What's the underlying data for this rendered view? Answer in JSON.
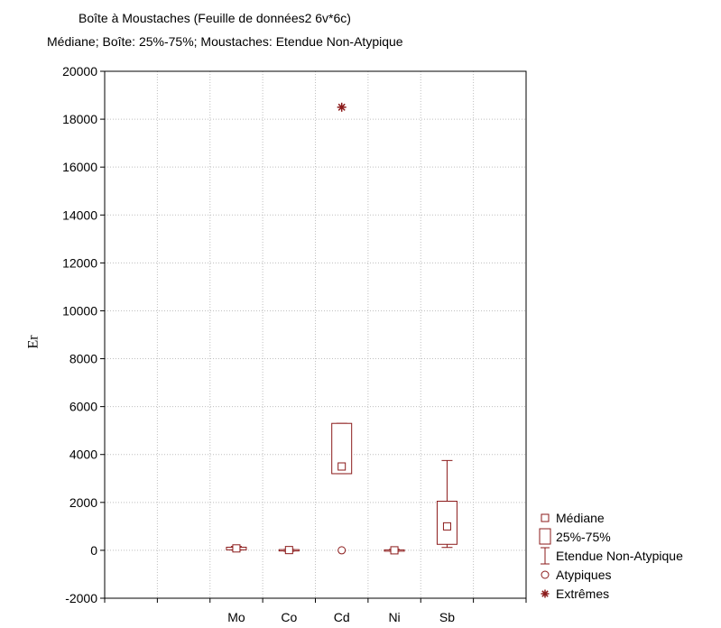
{
  "chart_data": {
    "type": "box",
    "title": "Boîte à Moustaches (Feuille de données2 6v*6c)",
    "subtitle": "Médiane; Boîte: 25%-75%; Moustaches: Etendue Non-Atypique",
    "xlabel": "",
    "ylabel": "Er",
    "ylim": [
      -2000,
      20000
    ],
    "yticks": [
      -2000,
      0,
      2000,
      4000,
      6000,
      8000,
      10000,
      12000,
      14000,
      16000,
      18000,
      20000
    ],
    "categories": [
      "Mo",
      "Co",
      "Cd",
      "Ni",
      "Sb"
    ],
    "grid": true,
    "color": "#8b1a1a",
    "series": [
      {
        "category": "Mo",
        "median": 80,
        "q1": 20,
        "q3": 130,
        "whisker_low": 10,
        "whisker_high": 160,
        "outliers": [],
        "extremes": []
      },
      {
        "category": "Co",
        "median": 10,
        "q1": -20,
        "q3": 30,
        "whisker_low": -40,
        "whisker_high": 40,
        "outliers": [],
        "extremes": []
      },
      {
        "category": "Cd",
        "median": 3500,
        "q1": 3200,
        "q3": 5300,
        "whisker_low": 3200,
        "whisker_high": 5300,
        "outliers": [
          0
        ],
        "extremes": [
          18500
        ]
      },
      {
        "category": "Ni",
        "median": 0,
        "q1": -20,
        "q3": 20,
        "whisker_low": -40,
        "whisker_high": 40,
        "outliers": [],
        "extremes": []
      },
      {
        "category": "Sb",
        "median": 1000,
        "q1": 250,
        "q3": 2050,
        "whisker_low": 120,
        "whisker_high": 3750,
        "outliers": [],
        "extremes": []
      }
    ],
    "legend": {
      "placement": "bottom-right",
      "items": [
        {
          "symbol": "median",
          "label": "Médiane"
        },
        {
          "symbol": "box",
          "label": "25%-75%"
        },
        {
          "symbol": "whisker",
          "label": "Etendue Non-Atypique"
        },
        {
          "symbol": "outlier",
          "label": "Atypiques"
        },
        {
          "symbol": "extreme",
          "label": "Extrêmes"
        }
      ]
    }
  }
}
